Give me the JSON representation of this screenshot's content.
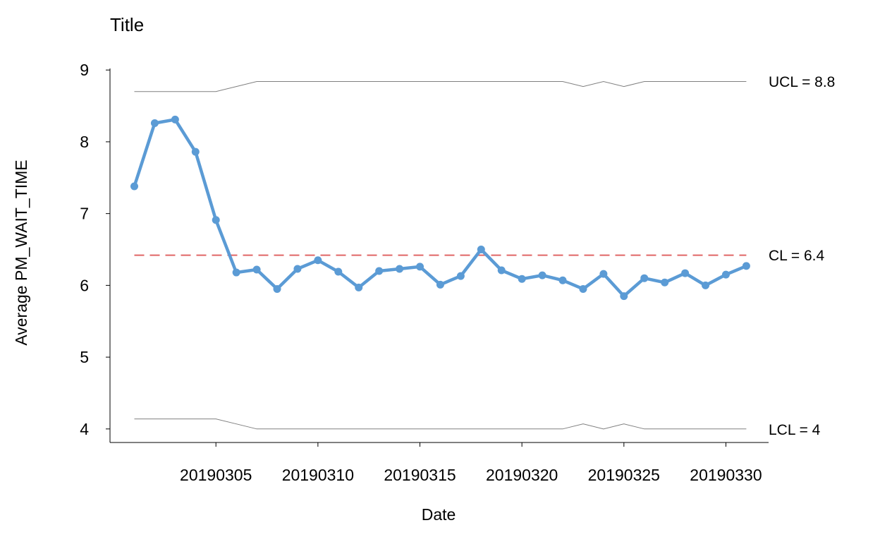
{
  "chart_data": {
    "type": "line",
    "title": "Title",
    "xlabel": "Date",
    "ylabel": "Average PM_WAIT_TIME",
    "ylim": [
      3.9,
      9.05
    ],
    "yticks": [
      4,
      5,
      6,
      7,
      8,
      9
    ],
    "xtick_labels": [
      "20190305",
      "20190310",
      "20190315",
      "20190320",
      "20190325",
      "20190330"
    ],
    "xtick_days": [
      5,
      10,
      15,
      20,
      25,
      30
    ],
    "x_start_day": 1,
    "x_end_day": 31,
    "x": [
      "20190301",
      "20190302",
      "20190303",
      "20190304",
      "20190305",
      "20190306",
      "20190307",
      "20190308",
      "20190309",
      "20190310",
      "20190311",
      "20190312",
      "20190313",
      "20190314",
      "20190315",
      "20190316",
      "20190317",
      "20190318",
      "20190319",
      "20190320",
      "20190321",
      "20190322",
      "20190323",
      "20190324",
      "20190325",
      "20190326",
      "20190327",
      "20190328",
      "20190329",
      "20190330",
      "20190331"
    ],
    "series": [
      {
        "name": "",
        "color": "#5b9bd5",
        "values": [
          7.38,
          8.26,
          8.31,
          7.86,
          6.91,
          6.18,
          6.22,
          5.95,
          6.23,
          6.35,
          6.19,
          5.97,
          6.2,
          6.23,
          6.26,
          6.01,
          6.13,
          6.5,
          6.21,
          6.09,
          6.14,
          6.07,
          5.95,
          6.16,
          5.85,
          6.1,
          6.04,
          6.17,
          6.0,
          6.15,
          6.27
        ]
      }
    ],
    "control_lines": {
      "cl": {
        "value": 6.42,
        "label": "CL = 6.4",
        "color": "#e06666"
      },
      "ucl": {
        "label": "UCL = 8.8",
        "color": "#808080",
        "values": [
          8.7,
          8.7,
          8.7,
          8.7,
          8.7,
          8.77,
          8.84,
          8.84,
          8.84,
          8.84,
          8.84,
          8.84,
          8.84,
          8.84,
          8.84,
          8.84,
          8.84,
          8.84,
          8.84,
          8.84,
          8.84,
          8.84,
          8.77,
          8.84,
          8.77,
          8.84,
          8.84,
          8.84,
          8.84,
          8.84,
          8.84
        ]
      },
      "lcl": {
        "label": "LCL = 4",
        "color": "#808080",
        "values": [
          4.14,
          4.14,
          4.14,
          4.14,
          4.14,
          4.07,
          4.0,
          4.0,
          4.0,
          4.0,
          4.0,
          4.0,
          4.0,
          4.0,
          4.0,
          4.0,
          4.0,
          4.0,
          4.0,
          4.0,
          4.0,
          4.0,
          4.07,
          4.0,
          4.07,
          4.0,
          4.0,
          4.0,
          4.0,
          4.0,
          4.0
        ]
      }
    },
    "grid": false,
    "legend": "none"
  }
}
